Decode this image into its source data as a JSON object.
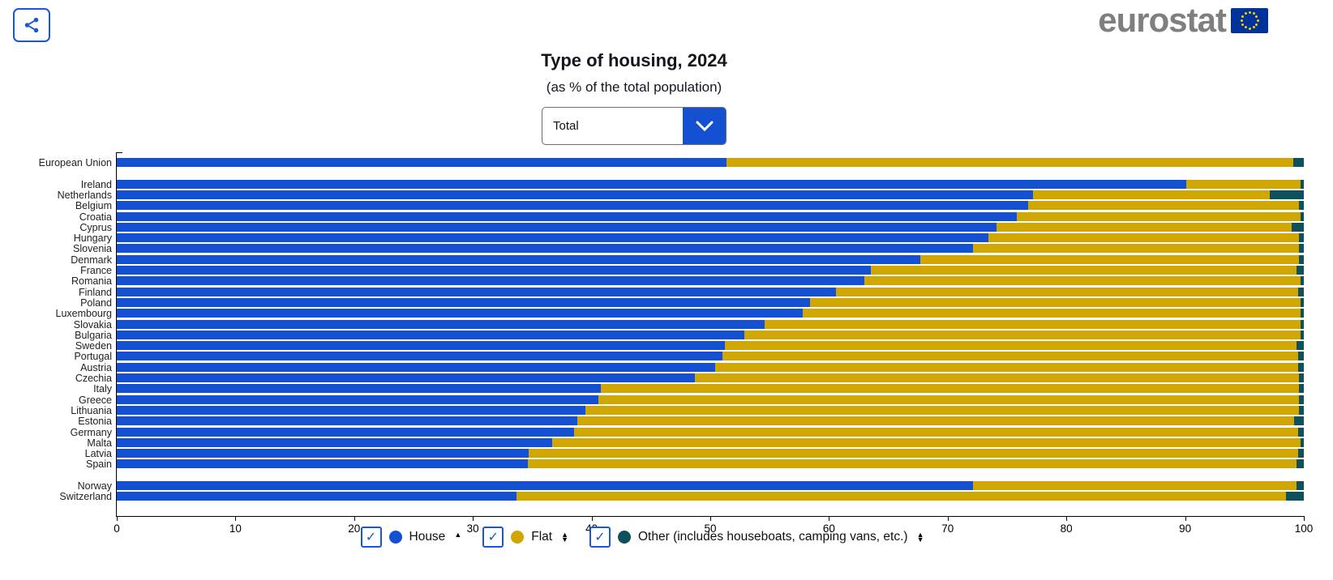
{
  "header": {
    "logo_text": "eurostat"
  },
  "chart": {
    "title": "Type of housing, 2024",
    "subtitle": "(as % of the total population)",
    "filter_value": "Total"
  },
  "legend": {
    "items": [
      {
        "label": "House",
        "color": "#1350d2",
        "checked": true,
        "sort": "up"
      },
      {
        "label": "Flat",
        "color": "#cfa602",
        "checked": true,
        "sort": "updown"
      },
      {
        "label": "Other (includes houseboats, camping vans, etc.)",
        "color": "#0e515c",
        "checked": true,
        "sort": "updown"
      }
    ]
  },
  "chart_data": {
    "type": "bar",
    "stacked": true,
    "orientation": "horizontal",
    "title": "Type of housing, 2024",
    "subtitle": "(as % of the total population)",
    "unit": "% of total population",
    "xlim": [
      0,
      100
    ],
    "x_ticks": [
      0,
      10,
      20,
      30,
      40,
      50,
      60,
      70,
      80,
      90,
      100
    ],
    "series_names": [
      "House",
      "Flat",
      "Other"
    ],
    "colors": {
      "House": "#1350d2",
      "Flat": "#cfa602",
      "Other": "#0e515c"
    },
    "rows": [
      {
        "category": "European Union",
        "house": 51.4,
        "flat": 47.7,
        "other": 0.9,
        "gap_before": false
      },
      {
        "category": "Ireland",
        "house": 90.1,
        "flat": 9.6,
        "other": 0.3,
        "gap_before": true
      },
      {
        "category": "Netherlands",
        "house": 77.2,
        "flat": 19.9,
        "other": 2.9,
        "gap_before": false
      },
      {
        "category": "Belgium",
        "house": 76.8,
        "flat": 22.8,
        "other": 0.4,
        "gap_before": false
      },
      {
        "category": "Croatia",
        "house": 75.8,
        "flat": 23.9,
        "other": 0.3,
        "gap_before": false
      },
      {
        "category": "Cyprus",
        "house": 74.1,
        "flat": 24.9,
        "other": 1.0,
        "gap_before": false
      },
      {
        "category": "Hungary",
        "house": 73.4,
        "flat": 26.2,
        "other": 0.4,
        "gap_before": false
      },
      {
        "category": "Slovenia",
        "house": 72.1,
        "flat": 27.5,
        "other": 0.4,
        "gap_before": false
      },
      {
        "category": "Denmark",
        "house": 67.7,
        "flat": 31.9,
        "other": 0.4,
        "gap_before": false
      },
      {
        "category": "France",
        "house": 63.5,
        "flat": 35.9,
        "other": 0.6,
        "gap_before": false
      },
      {
        "category": "Romania",
        "house": 63.0,
        "flat": 36.7,
        "other": 0.3,
        "gap_before": false
      },
      {
        "category": "Finland",
        "house": 60.6,
        "flat": 38.9,
        "other": 0.5,
        "gap_before": false
      },
      {
        "category": "Poland",
        "house": 58.4,
        "flat": 41.3,
        "other": 0.3,
        "gap_before": false
      },
      {
        "category": "Luxembourg",
        "house": 57.8,
        "flat": 41.9,
        "other": 0.3,
        "gap_before": false
      },
      {
        "category": "Slovakia",
        "house": 54.6,
        "flat": 45.1,
        "other": 0.3,
        "gap_before": false
      },
      {
        "category": "Bulgaria",
        "house": 52.9,
        "flat": 46.8,
        "other": 0.3,
        "gap_before": false
      },
      {
        "category": "Sweden",
        "house": 51.2,
        "flat": 48.2,
        "other": 0.6,
        "gap_before": false
      },
      {
        "category": "Portugal",
        "house": 51.0,
        "flat": 48.5,
        "other": 0.5,
        "gap_before": false
      },
      {
        "category": "Austria",
        "house": 50.4,
        "flat": 49.1,
        "other": 0.5,
        "gap_before": false
      },
      {
        "category": "Czechia",
        "house": 48.7,
        "flat": 50.9,
        "other": 0.4,
        "gap_before": false
      },
      {
        "category": "Italy",
        "house": 40.8,
        "flat": 58.8,
        "other": 0.4,
        "gap_before": false
      },
      {
        "category": "Greece",
        "house": 40.6,
        "flat": 59.0,
        "other": 0.4,
        "gap_before": false
      },
      {
        "category": "Lithuania",
        "house": 39.5,
        "flat": 60.1,
        "other": 0.4,
        "gap_before": false
      },
      {
        "category": "Estonia",
        "house": 38.8,
        "flat": 60.4,
        "other": 0.8,
        "gap_before": false
      },
      {
        "category": "Germany",
        "house": 38.5,
        "flat": 61.0,
        "other": 0.5,
        "gap_before": false
      },
      {
        "category": "Malta",
        "house": 36.7,
        "flat": 63.0,
        "other": 0.3,
        "gap_before": false
      },
      {
        "category": "Latvia",
        "house": 34.7,
        "flat": 64.8,
        "other": 0.5,
        "gap_before": false
      },
      {
        "category": "Spain",
        "house": 34.6,
        "flat": 64.8,
        "other": 0.6,
        "gap_before": false
      },
      {
        "category": "Norway",
        "house": 72.1,
        "flat": 27.3,
        "other": 0.6,
        "gap_before": true
      },
      {
        "category": "Switzerland",
        "house": 33.7,
        "flat": 64.8,
        "other": 1.5,
        "gap_before": false
      }
    ]
  }
}
